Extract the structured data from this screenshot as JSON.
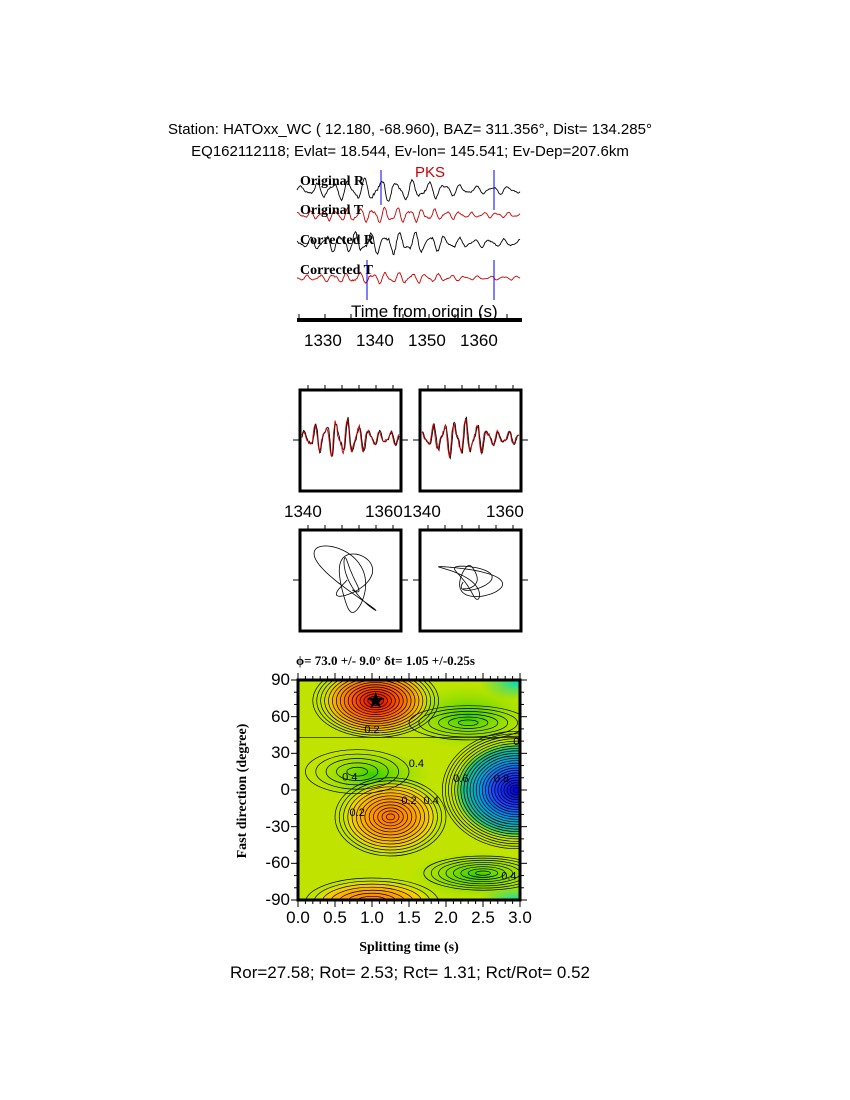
{
  "header": {
    "line1": "Station: HATOxx_WC (  12.180,  -68.960), BAZ=  311.356°, Dist=  134.285°",
    "line2": "EQ162112118; Evlat=  18.544, Ev-lon= 145.541; Ev-Dep=207.6km"
  },
  "traces": {
    "phase": "PKS",
    "labels": [
      "Original R",
      "Original T",
      "Corrected R",
      "Corrected T"
    ],
    "colors": [
      "#000000",
      "#cc0000",
      "#000000",
      "#cc0000"
    ],
    "window_color": "#0000ff",
    "xlabel": "Time from origin (s)",
    "xticks": [
      "1330",
      "1340",
      "1350",
      "1360"
    ]
  },
  "waveform_panels": {
    "left_xticks": [
      "1340",
      "1360"
    ],
    "right_xticks": [
      "1340",
      "1360"
    ]
  },
  "chart_data": {
    "type": "heatmap",
    "title": "ϕ= 73.0 +/- 9.0° δt= 1.05 +/-0.25s",
    "xlabel": "Splitting time (s)",
    "ylabel": "Fast direction (degree)",
    "xlim": [
      0.0,
      3.0
    ],
    "ylim": [
      -90,
      90
    ],
    "xticks": [
      "0.0",
      "0.5",
      "1.0",
      "1.5",
      "2.0",
      "2.5",
      "3.0"
    ],
    "yticks": [
      "90",
      "60",
      "30",
      "0",
      "-30",
      "-60",
      "-90"
    ],
    "best_fit": {
      "splitting_time": 1.05,
      "fast_direction": 73.0,
      "marker": "star"
    },
    "contour_labels": [
      {
        "x": 1.0,
        "y": 50,
        "text": "0.2"
      },
      {
        "x": 1.6,
        "y": 22,
        "text": "0.4"
      },
      {
        "x": 0.7,
        "y": 11,
        "text": "0.4"
      },
      {
        "x": 2.2,
        "y": 10,
        "text": "0.6"
      },
      {
        "x": 2.75,
        "y": 10,
        "text": "0.8"
      },
      {
        "x": 2.95,
        "y": 40,
        "text": "0"
      },
      {
        "x": 1.8,
        "y": -8,
        "text": "0.4"
      },
      {
        "x": 0.8,
        "y": -18,
        "text": "0.2"
      },
      {
        "x": 1.5,
        "y": -8,
        "text": "0.2"
      },
      {
        "x": 2.85,
        "y": -70,
        "text": "0.4"
      }
    ],
    "colorscale": [
      "#e00000",
      "#ff8000",
      "#e8e000",
      "#b0e000",
      "#30d000",
      "#00d0a0",
      "#00a0ff",
      "#0000ff"
    ]
  },
  "footer": "Ror=27.58; Rot= 2.53; Rct= 1.31; Rct/Rot= 0.52"
}
